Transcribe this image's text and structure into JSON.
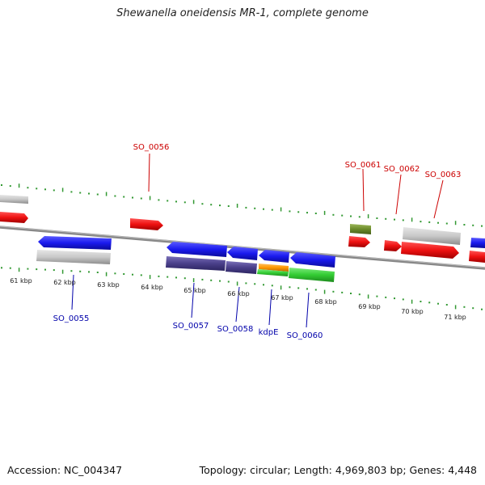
{
  "title": "Shewanella oneidensis MR-1, complete genome",
  "footer": {
    "accession": "Accession: NC_004347",
    "topology": "Topology: circular; Length: 4,969,803 bp; Genes: 4,448"
  },
  "scale_labels": [
    "61 kbp",
    "62 kbp",
    "63 kbp",
    "64 kbp",
    "65 kbp",
    "66 kbp",
    "67 kbp",
    "68 kbp",
    "69 kbp",
    "70 kbp",
    "71 kbp"
  ],
  "forward_gene_labels": [
    "SO_0056",
    "SO_0061",
    "SO_0062",
    "SO_0063"
  ],
  "reverse_gene_labels": [
    "SO_0055",
    "SO_0057",
    "SO_0058",
    "kdpE",
    "SO_0060"
  ],
  "colors": {
    "forward_label": "#cc0000",
    "reverse_label": "#0000aa",
    "tick": "#339933",
    "backbone": "#888888",
    "gene_red": "#ee1111",
    "gene_blue": "#1a1aee",
    "gene_grey": "#c8c8c8",
    "gene_purple": "#4a3f8a",
    "gene_green": "#33cc33",
    "gene_orange": "#ff9900",
    "gene_olive": "#6b8a2a"
  }
}
